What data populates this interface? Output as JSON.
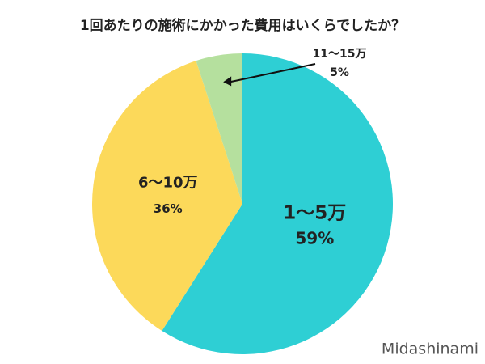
{
  "chart_data": {
    "type": "pie",
    "title": "1回あたりの施術にかかった費用はいくらでしたか？",
    "categories": [
      "1〜5万",
      "6〜10万",
      "11〜15万"
    ],
    "values": [
      59,
      36,
      5
    ],
    "value_labels": [
      "59%",
      "36%",
      "5%"
    ],
    "colors": [
      "#2ecfd4",
      "#fcd95a",
      "#b5e09e"
    ],
    "watermark": "Midashinami"
  }
}
